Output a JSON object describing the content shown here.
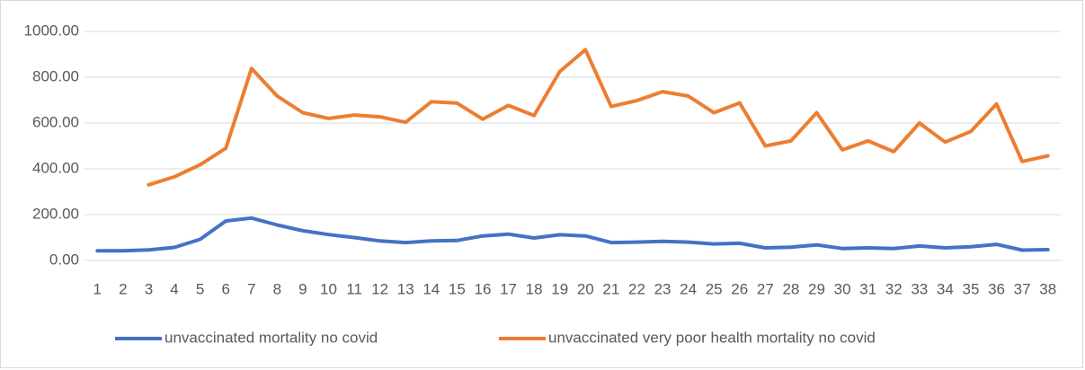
{
  "chart_data": {
    "type": "line",
    "categories": [
      "1",
      "2",
      "3",
      "4",
      "5",
      "6",
      "7",
      "8",
      "9",
      "10",
      "11",
      "12",
      "13",
      "14",
      "15",
      "16",
      "17",
      "18",
      "19",
      "20",
      "21",
      "22",
      "23",
      "24",
      "25",
      "26",
      "27",
      "28",
      "29",
      "30",
      "31",
      "32",
      "33",
      "34",
      "35",
      "36",
      "37",
      "38"
    ],
    "series": [
      {
        "name": "unvaccinated mortality no covid",
        "color": "#4472c4",
        "values": [
          42,
          42,
          46,
          57,
          92,
          172,
          185,
          155,
          130,
          113,
          100,
          85,
          78,
          85,
          87,
          107,
          115,
          98,
          112,
          107,
          78,
          80,
          83,
          80,
          72,
          75,
          55,
          58,
          68,
          52,
          55,
          52,
          63,
          55,
          60,
          70,
          45,
          47
        ]
      },
      {
        "name": "unvaccinated very poor health mortality no covid",
        "color": "#ed7d31",
        "values": [
          null,
          null,
          330,
          365,
          418,
          490,
          838,
          718,
          645,
          620,
          635,
          627,
          603,
          693,
          687,
          617,
          677,
          633,
          825,
          920,
          672,
          698,
          737,
          718,
          645,
          688,
          500,
          522,
          645,
          483,
          522,
          475,
          600,
          517,
          563,
          683,
          432,
          457
        ]
      }
    ],
    "ylim": [
      0,
      1000
    ],
    "yticks": [
      {
        "value": 0,
        "label": "0.00"
      },
      {
        "value": 200,
        "label": "200.00"
      },
      {
        "value": 400,
        "label": "400.00"
      },
      {
        "value": 600,
        "label": "600.00"
      },
      {
        "value": 800,
        "label": "800.00"
      },
      {
        "value": 1000,
        "label": "1000.00"
      }
    ],
    "grid": true,
    "legend": "bottom"
  }
}
